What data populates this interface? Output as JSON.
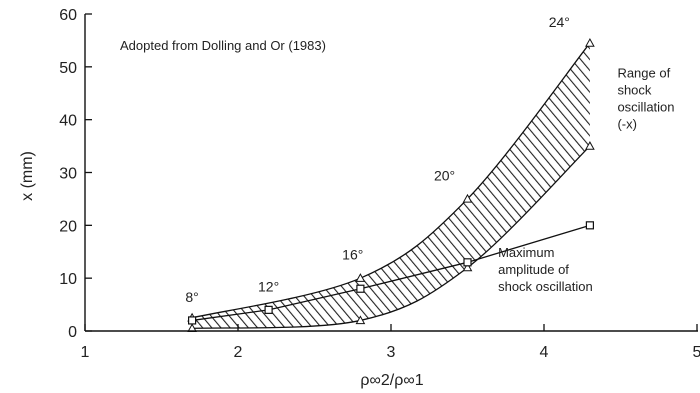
{
  "chart_data": {
    "type": "line",
    "title": "",
    "xlabel": "ρ∞2/ρ∞1",
    "ylabel": "x (mm)",
    "xlim": [
      1,
      5
    ],
    "ylim": [
      0,
      60
    ],
    "xticks": [
      "1",
      "2",
      "3",
      "4",
      "5"
    ],
    "yticks": [
      "0",
      "10",
      "20",
      "30",
      "40",
      "50",
      "60"
    ],
    "grid": false,
    "source_note": "Adopted from Dolling and Or (1983)",
    "band": {
      "name": "Range of shock oscillation (-x)",
      "fill": "hatched",
      "upper": {
        "x": [
          1.7,
          2.8,
          3.5,
          4.3
        ],
        "y": [
          2.5,
          10,
          25,
          54.5
        ]
      },
      "lower": {
        "x": [
          1.7,
          2.8,
          3.5,
          4.3
        ],
        "y": [
          0.5,
          2,
          12,
          35
        ]
      }
    },
    "series": [
      {
        "name": "Maximum amplitude of shock oscillation",
        "marker": "square",
        "x": [
          1.7,
          2.2,
          2.8,
          3.5,
          4.3
        ],
        "y": [
          2,
          4,
          8,
          13,
          20
        ]
      }
    ],
    "angle_labels": [
      {
        "text": "8°",
        "x": 1.7,
        "y": 5.5
      },
      {
        "text": "12°",
        "x": 2.2,
        "y": 7.5
      },
      {
        "text": "16°",
        "x": 2.75,
        "y": 13.5
      },
      {
        "text": "20°",
        "x": 3.35,
        "y": 28.5
      },
      {
        "text": "24°",
        "x": 4.1,
        "y": 57.5
      }
    ],
    "annotations": [
      {
        "lines": [
          "Range of",
          "shock",
          "oscillation",
          "(-x)"
        ],
        "x": 4.48,
        "y": 48
      },
      {
        "lines": [
          "Maximum",
          "amplitude of",
          "shock oscillation"
        ],
        "x": 3.7,
        "y": 14
      }
    ]
  }
}
